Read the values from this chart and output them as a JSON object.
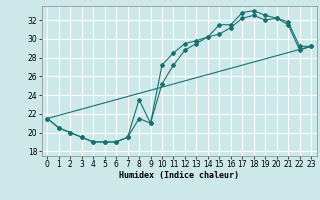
{
  "xlabel": "Humidex (Indice chaleur)",
  "bg_color": "#cce8e8",
  "grid_color": "#ffffff",
  "line_color": "#1a7070",
  "xlim": [
    -0.5,
    23.5
  ],
  "ylim": [
    17.5,
    33.5
  ],
  "xticks": [
    0,
    1,
    2,
    3,
    4,
    5,
    6,
    7,
    8,
    9,
    10,
    11,
    12,
    13,
    14,
    15,
    16,
    17,
    18,
    19,
    20,
    21,
    22,
    23
  ],
  "yticks": [
    18,
    20,
    22,
    24,
    26,
    28,
    30,
    32
  ],
  "line1_x": [
    0,
    1,
    2,
    3,
    4,
    5,
    6,
    7,
    8,
    9,
    10,
    11,
    12,
    13,
    14,
    15,
    16,
    17,
    18,
    19,
    20,
    21,
    22,
    23
  ],
  "line1_y": [
    21.5,
    20.5,
    20.0,
    19.5,
    19.0,
    19.0,
    19.0,
    19.5,
    23.5,
    21.0,
    27.2,
    28.5,
    29.5,
    29.8,
    30.2,
    31.5,
    31.5,
    32.8,
    33.0,
    32.5,
    32.2,
    31.8,
    29.2,
    29.2
  ],
  "line2_x": [
    0,
    1,
    2,
    3,
    4,
    5,
    6,
    7,
    8,
    9,
    10,
    11,
    12,
    13,
    14,
    15,
    16,
    17,
    18,
    19,
    20,
    21,
    22,
    23
  ],
  "line2_y": [
    21.5,
    20.5,
    20.0,
    19.5,
    19.0,
    19.0,
    19.0,
    19.5,
    21.5,
    21.0,
    25.2,
    27.2,
    28.8,
    29.5,
    30.2,
    30.5,
    31.2,
    32.2,
    32.5,
    32.0,
    32.2,
    31.5,
    28.8,
    29.2
  ],
  "line3_x": [
    0,
    23
  ],
  "line3_y": [
    21.5,
    29.2
  ]
}
